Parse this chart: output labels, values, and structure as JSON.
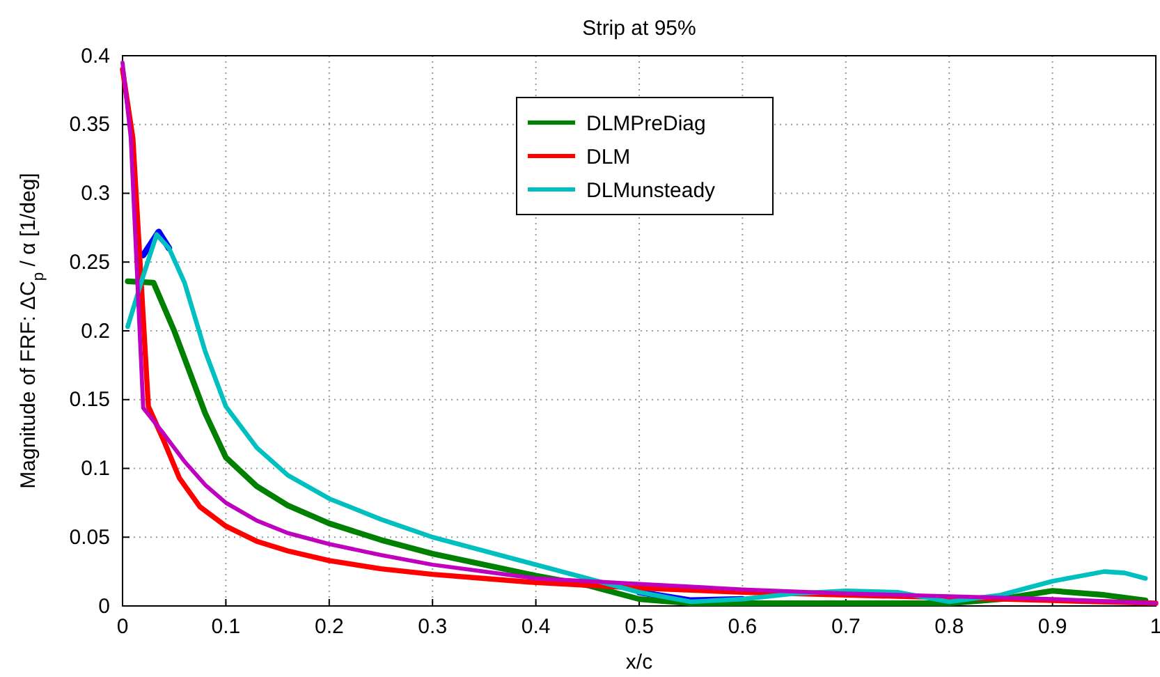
{
  "chart_data": {
    "type": "line",
    "title": "Strip at 95%",
    "xlabel": "x/c",
    "ylabel": "Magnitude of FRF: ΔC$_{p}$ / α [1/deg]",
    "xlim": [
      0,
      1
    ],
    "xticks": [
      0,
      0.1,
      0.2,
      0.3,
      0.4,
      0.5,
      0.6,
      0.7,
      0.8,
      0.9,
      1
    ],
    "ylim": [
      0,
      0.4
    ],
    "yticks": [
      0,
      0.05,
      0.1,
      0.15,
      0.2,
      0.25,
      0.3,
      0.35,
      0.4
    ],
    "grid": true,
    "legend": "top",
    "line_style": "solid",
    "marker": "none",
    "series": [
      {
        "color": "#0000ff",
        "x": [
          0.02,
          0.035,
          0.045,
          0.06,
          0.5,
          0.55,
          0.6
        ],
        "values": [
          0.255,
          0.272,
          0.26,
          null,
          0.01,
          0.004,
          0.005
        ]
      },
      {
        "name": "DLMPreDiag",
        "color": "#008000",
        "x": [
          0.005,
          0.03,
          0.05,
          0.08,
          0.1,
          0.13,
          0.16,
          0.2,
          0.25,
          0.3,
          0.35,
          0.4,
          0.45,
          0.5,
          0.55,
          0.6,
          0.7,
          0.8,
          0.85,
          0.9,
          0.95,
          0.99
        ],
        "values": [
          0.236,
          0.235,
          0.2,
          0.14,
          0.108,
          0.087,
          0.073,
          0.06,
          0.048,
          0.038,
          0.03,
          0.022,
          0.015,
          0.005,
          0.002,
          0.002,
          0.002,
          0.002,
          0.005,
          0.011,
          0.008,
          0.004
        ]
      },
      {
        "name": "DLM",
        "color": "#ff0000",
        "x": [
          0,
          0.01,
          0.025,
          0.04,
          0.055,
          0.075,
          0.1,
          0.13,
          0.16,
          0.2,
          0.25,
          0.3,
          0.35,
          0.4,
          0.45,
          0.5,
          0.6,
          0.7,
          0.8,
          0.9,
          1
        ],
        "values": [
          0.39,
          0.34,
          0.145,
          0.12,
          0.093,
          0.072,
          0.058,
          0.047,
          0.04,
          0.033,
          0.027,
          0.023,
          0.02,
          0.017,
          0.015,
          0.013,
          0.01,
          0.008,
          0.006,
          0.004,
          0.002
        ]
      },
      {
        "name": "DLMunsteady",
        "color": "#00bfbf",
        "x": [
          0.005,
          0.02,
          0.033,
          0.045,
          0.06,
          0.08,
          0.1,
          0.13,
          0.16,
          0.2,
          0.25,
          0.3,
          0.35,
          0.4,
          0.45,
          0.5,
          0.55,
          0.6,
          0.65,
          0.7,
          0.75,
          0.8,
          0.85,
          0.9,
          0.95,
          0.97,
          0.99
        ],
        "values": [
          0.203,
          0.24,
          0.27,
          0.26,
          0.235,
          0.185,
          0.145,
          0.115,
          0.095,
          0.078,
          0.063,
          0.05,
          0.04,
          0.03,
          0.02,
          0.01,
          0.003,
          0.005,
          0.009,
          0.011,
          0.01,
          0.003,
          0.008,
          0.018,
          0.025,
          0.024,
          0.02
        ]
      },
      {
        "color": "#bf00bf",
        "x": [
          0,
          0.008,
          0.02,
          0.04,
          0.06,
          0.08,
          0.1,
          0.13,
          0.16,
          0.2,
          0.25,
          0.3,
          0.35,
          0.4,
          0.45,
          0.5,
          0.6,
          0.7,
          0.8,
          0.9,
          1
        ],
        "values": [
          0.395,
          0.34,
          0.144,
          0.125,
          0.105,
          0.088,
          0.075,
          0.062,
          0.053,
          0.045,
          0.037,
          0.03,
          0.025,
          0.02,
          0.018,
          0.016,
          0.012,
          0.009,
          0.007,
          0.005,
          0.002
        ]
      }
    ]
  }
}
